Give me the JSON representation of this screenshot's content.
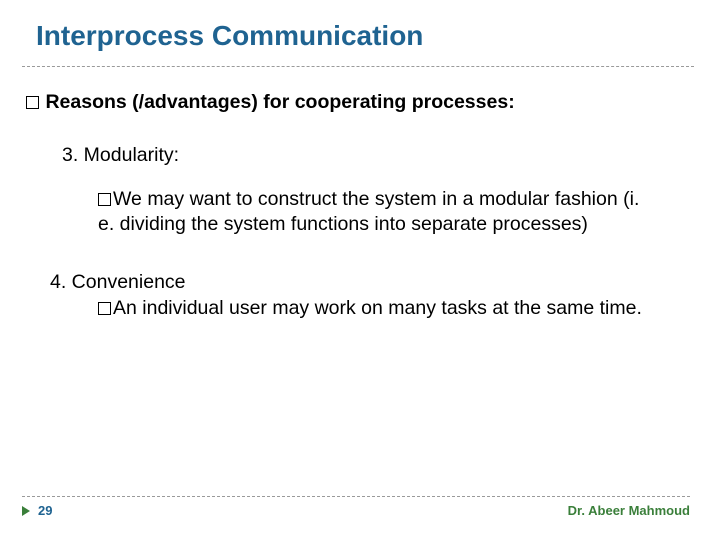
{
  "title": "Interprocess Communication",
  "mainBullet": {
    "lead": " Reasons",
    "rest": " (/advantages) for cooperating processes:"
  },
  "item3": {
    "heading": "3. Modularity:",
    "body": "We may want to construct the system in a modular fashion (i. e. dividing the system functions into separate processes)"
  },
  "item4": {
    "heading": "4. Convenience",
    "body": "An individual user may work on many tasks at the same time."
  },
  "footer": {
    "page": "29",
    "author": "Dr. Abeer Mahmoud"
  },
  "colors": {
    "titleColor": "#1f6391",
    "authorColor": "#3a7f3a",
    "dash": "#9a9a9a"
  }
}
